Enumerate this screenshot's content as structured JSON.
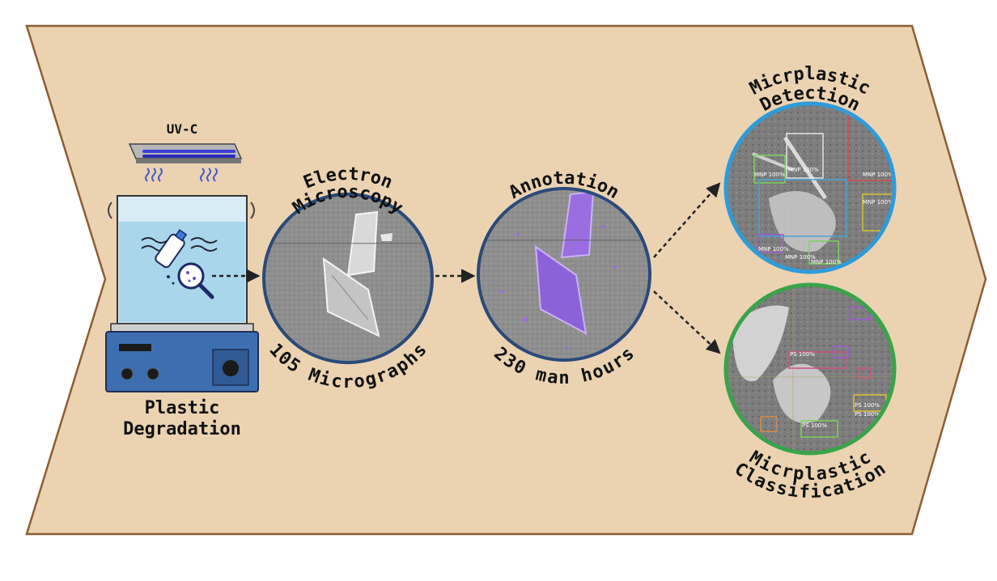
{
  "diagram": {
    "colors": {
      "background": "#ebd3b2",
      "border": "#8b5e34",
      "electron_ring": "#2a4a7a",
      "detection_ring": "#2f9bd9",
      "classification_ring": "#3aa34a",
      "annotation_fill": "#9a6ee0",
      "arrow": "#222222"
    },
    "stage_1": {
      "lamp_label": "UV-C",
      "title_line1": "Plastic",
      "title_line2": "Degradation",
      "icons": [
        "uv-lamp-icon",
        "heat-waves-icon",
        "water-beaker-icon",
        "plastic-bottle-icon",
        "magnifier-icon",
        "hotplate-icon"
      ]
    },
    "stage_2": {
      "arc_top_line1": "Electron",
      "arc_top_line2": "Microscopy",
      "arc_bottom": "105 Micrographs"
    },
    "stage_3": {
      "arc_top": "Annotation",
      "arc_bottom": "230 man hours"
    },
    "stage_4a": {
      "arc_top_line1": "Micrplastic",
      "arc_top_line2": "Detection",
      "box_labels": [
        "MNP 100%",
        "MNP 100%",
        "MNP 100%",
        "MNP 100%",
        "MNP 100%",
        "MNP 100%",
        "MNP 100%"
      ]
    },
    "stage_4b": {
      "arc_bottom_line1": "Micrplastic",
      "arc_bottom_line2": "Classification",
      "box_labels": [
        "PS 100%",
        "PS 100%",
        "PS 100%",
        "PS 100%"
      ]
    }
  }
}
